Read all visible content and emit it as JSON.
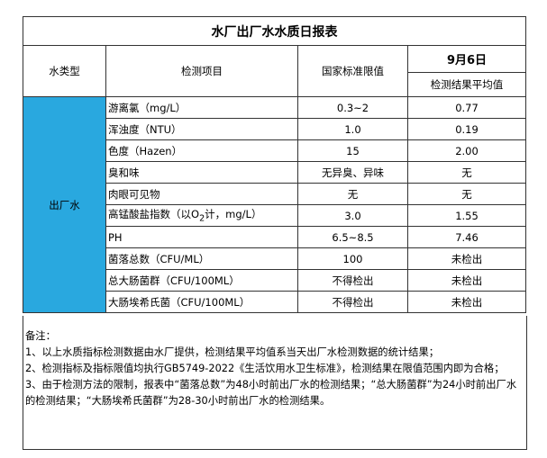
{
  "table": {
    "title": "水厂出厂水水质日报表",
    "headers": {
      "type": "水类型",
      "item": "检测项目",
      "standard": "国家标准限值",
      "date": "9月6日",
      "result": "检测结果平均值"
    },
    "water_type": "出厂水",
    "rows": [
      {
        "item": [
          "游离氯（mg/L）"
        ],
        "standard": "0.3~2",
        "result": "0.77"
      },
      {
        "item": [
          "浑浊度（NTU）"
        ],
        "standard": "1.0",
        "result": "0.19"
      },
      {
        "item": [
          "色度（Hazen）"
        ],
        "standard": "15",
        "result": "2.00"
      },
      {
        "item": [
          "臭和味"
        ],
        "standard": "无异臭、异味",
        "result": "无"
      },
      {
        "item": [
          "肉眼可见物"
        ],
        "standard": "无",
        "result": "无"
      },
      {
        "item": [
          "高锰酸盐指数（以O",
          "2",
          "计，mg/L）"
        ],
        "standard": "3.0",
        "result": "1.55"
      },
      {
        "item": [
          "PH"
        ],
        "standard": "6.5~8.5",
        "result": "7.46"
      },
      {
        "item": [
          "菌落总数（CFU/ML）"
        ],
        "standard": "100",
        "result": "未检出"
      },
      {
        "item": [
          "总大肠菌群（CFU/100ML）"
        ],
        "standard": "不得检出",
        "result": "未检出"
      },
      {
        "item": [
          "大肠埃希氏菌（CFU/100ML）"
        ],
        "standard": "不得检出",
        "result": "未检出"
      }
    ]
  },
  "notes": {
    "heading": "备注：",
    "lines": [
      "1、以上水质指标检测数据由水厂提供，检测结果平均值系当天出厂水检测数据的统计结果；",
      "2、检测指标及指标限值均执行GB5749-2022《生活饮用水卫生标准》，检测结果在限值范围内即为合格；",
      "3、由于检测方法的限制，报表中“菌落总数”为48小时前出厂水的检测结果；“总大肠菌群”为24小时前出厂水的检测结果；“大肠埃希氏菌群”为28-30小时前出厂水的检测结果。"
    ]
  }
}
